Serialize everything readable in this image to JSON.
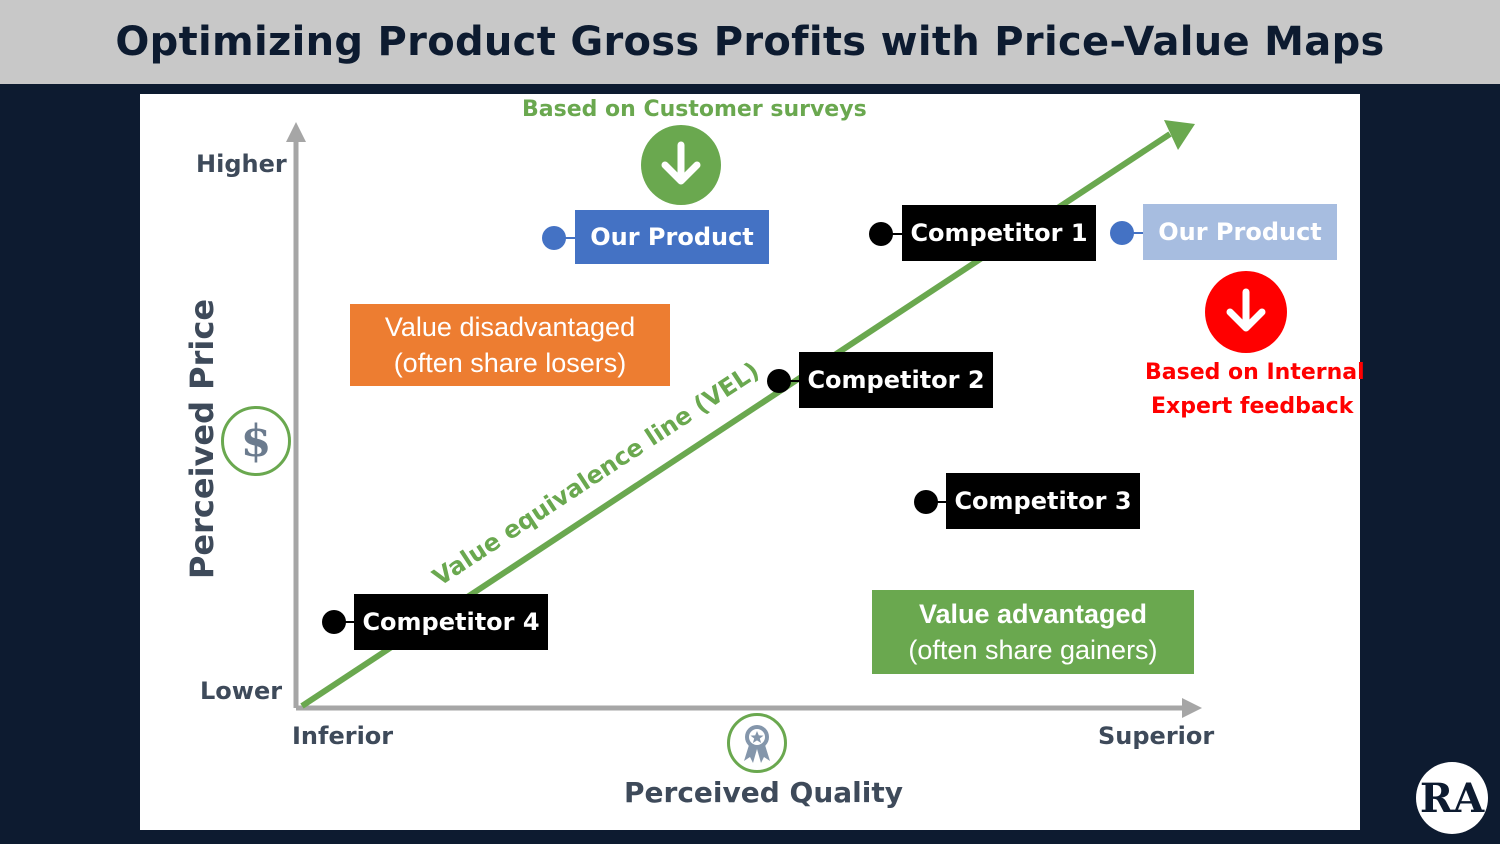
{
  "title": "Optimizing Product Gross Profits with Price-Value Maps",
  "axes": {
    "y_label": "Perceived Price",
    "y_high": "Higher",
    "y_low": "Lower",
    "x_label": "Perceived Quality",
    "x_low": "Inferior",
    "x_high": "Superior"
  },
  "vel_label": "Value equivalence line (VEL)",
  "survey_note": "Based on Customer surveys",
  "internal_note_line1": "Based on Internal",
  "internal_note_line2": "Expert feedback",
  "products": {
    "our_product_survey": "Our Product",
    "our_product_internal": "Our Product",
    "competitor_1": "Competitor 1",
    "competitor_2": "Competitor 2",
    "competitor_3": "Competitor 3",
    "competitor_4": "Competitor 4"
  },
  "regions": {
    "disadvantaged_line1": "Value disadvantaged",
    "disadvantaged_line2": "(often share losers)",
    "advantaged_line1": "Value advantaged",
    "advantaged_line2": "(often share gainers)"
  },
  "icons": {
    "dollar": "$",
    "logo": "RA"
  },
  "colors": {
    "navy": "#0d1b30",
    "green": "#6aa84f",
    "orange": "#ed7d31",
    "blue": "#4472c4",
    "light_blue": "#a7bde0",
    "red": "#ff0000",
    "axis_gray": "#a6a6a6"
  }
}
